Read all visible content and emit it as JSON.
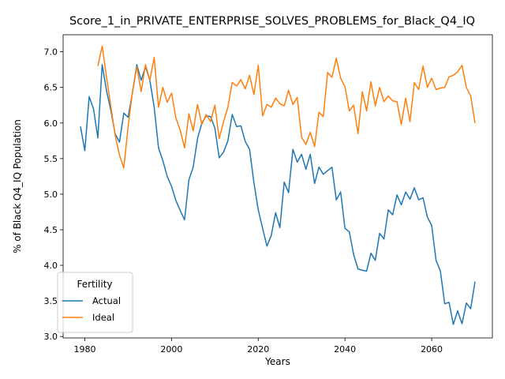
{
  "chart_data": {
    "type": "line",
    "title": "Score_1_in_PRIVATE_ENTERPRISE_SOLVES_PROBLEMS_for_Black_Q4_IQ",
    "xlabel": "Years",
    "ylabel": "% of Black Q4_IQ Population",
    "xlim": [
      1975,
      2074
    ],
    "ylim": [
      2.98,
      7.24
    ],
    "xticks": [
      1980,
      2000,
      2020,
      2040,
      2060
    ],
    "yticks": [
      3.0,
      3.5,
      4.0,
      4.5,
      5.0,
      5.5,
      6.0,
      6.5,
      7.0
    ],
    "grid": false,
    "legend": {
      "title": "Fertility",
      "placement": "lower-left"
    },
    "series": [
      {
        "name": "Actual",
        "color": "#1f77b4",
        "x": [
          1979,
          1980,
          1981,
          1982,
          1983,
          1984,
          1985,
          1986,
          1987,
          1988,
          1989,
          1990,
          1991,
          1992,
          1993,
          1994,
          1995,
          1996,
          1997,
          1998,
          1999,
          2000,
          2001,
          2002,
          2003,
          2004,
          2005,
          2006,
          2007,
          2008,
          2009,
          2010,
          2011,
          2012,
          2013,
          2014,
          2015,
          2016,
          2017,
          2018,
          2019,
          2020,
          2021,
          2022,
          2023,
          2024,
          2025,
          2026,
          2027,
          2028,
          2029,
          2030,
          2031,
          2032,
          2033,
          2034,
          2035,
          2036,
          2037,
          2038,
          2039,
          2040,
          2041,
          2042,
          2043,
          2044,
          2045,
          2046,
          2047,
          2048,
          2049,
          2050,
          2051,
          2052,
          2053,
          2054,
          2055,
          2056,
          2057,
          2058,
          2059,
          2060,
          2061,
          2062,
          2063,
          2064,
          2065,
          2066,
          2067,
          2068,
          2069,
          2070
        ],
        "values": [
          5.95,
          5.61,
          6.37,
          6.2,
          5.79,
          6.82,
          6.46,
          6.18,
          5.85,
          5.73,
          6.14,
          6.08,
          6.43,
          6.82,
          6.6,
          6.79,
          6.6,
          6.22,
          5.65,
          5.47,
          5.25,
          5.11,
          4.91,
          4.77,
          4.64,
          5.2,
          5.38,
          5.78,
          6.0,
          6.1,
          6.09,
          5.93,
          5.51,
          5.59,
          5.75,
          6.12,
          5.95,
          5.96,
          5.74,
          5.63,
          5.16,
          4.78,
          4.52,
          4.27,
          4.42,
          4.74,
          4.53,
          5.17,
          5.02,
          5.63,
          5.45,
          5.56,
          5.35,
          5.56,
          5.15,
          5.38,
          5.28,
          5.33,
          5.38,
          4.92,
          5.03,
          4.52,
          4.47,
          4.15,
          3.95,
          3.93,
          3.92,
          4.17,
          4.07,
          4.45,
          4.37,
          4.78,
          4.71,
          4.99,
          4.85,
          5.03,
          4.93,
          5.09,
          4.92,
          4.95,
          4.68,
          4.56,
          4.07,
          3.92,
          3.46,
          3.48,
          3.17,
          3.36,
          3.18,
          3.47,
          3.39,
          3.77
        ]
      },
      {
        "name": "Ideal",
        "color": "#ff7f0e",
        "x": [
          1983,
          1984,
          1985,
          1986,
          1987,
          1988,
          1989,
          1990,
          1991,
          1992,
          1993,
          1994,
          1995,
          1996,
          1997,
          1998,
          1999,
          2000,
          2001,
          2002,
          2003,
          2004,
          2005,
          2006,
          2007,
          2008,
          2009,
          2010,
          2011,
          2012,
          2013,
          2014,
          2015,
          2016,
          2017,
          2018,
          2019,
          2020,
          2021,
          2022,
          2023,
          2024,
          2025,
          2026,
          2027,
          2028,
          2029,
          2030,
          2031,
          2032,
          2033,
          2034,
          2035,
          2036,
          2037,
          2038,
          2039,
          2040,
          2041,
          2042,
          2043,
          2044,
          2045,
          2046,
          2047,
          2048,
          2049,
          2050,
          2051,
          2052,
          2053,
          2054,
          2055,
          2056,
          2057,
          2058,
          2059,
          2060,
          2061,
          2062,
          2063,
          2064,
          2065,
          2066,
          2067,
          2068,
          2069,
          2070
        ],
        "values": [
          6.8,
          7.08,
          6.65,
          6.24,
          5.83,
          5.55,
          5.37,
          5.95,
          6.44,
          6.79,
          6.44,
          6.82,
          6.6,
          6.92,
          6.22,
          6.5,
          6.29,
          6.42,
          6.07,
          5.9,
          5.65,
          6.13,
          5.89,
          6.26,
          5.98,
          6.12,
          6.02,
          6.25,
          5.78,
          6.02,
          6.22,
          6.57,
          6.52,
          6.61,
          6.48,
          6.67,
          6.4,
          6.81,
          6.1,
          6.26,
          6.22,
          6.35,
          6.27,
          6.24,
          6.46,
          6.26,
          6.36,
          5.8,
          5.7,
          5.87,
          5.67,
          6.15,
          6.09,
          6.71,
          6.64,
          6.91,
          6.63,
          6.51,
          6.17,
          6.25,
          5.85,
          6.44,
          6.17,
          6.58,
          6.24,
          6.5,
          6.3,
          6.38,
          6.31,
          6.3,
          5.98,
          6.35,
          6.02,
          6.57,
          6.47,
          6.8,
          6.5,
          6.63,
          6.47,
          6.49,
          6.5,
          6.65,
          6.67,
          6.72,
          6.81,
          6.5,
          6.38,
          6.0
        ]
      }
    ]
  }
}
